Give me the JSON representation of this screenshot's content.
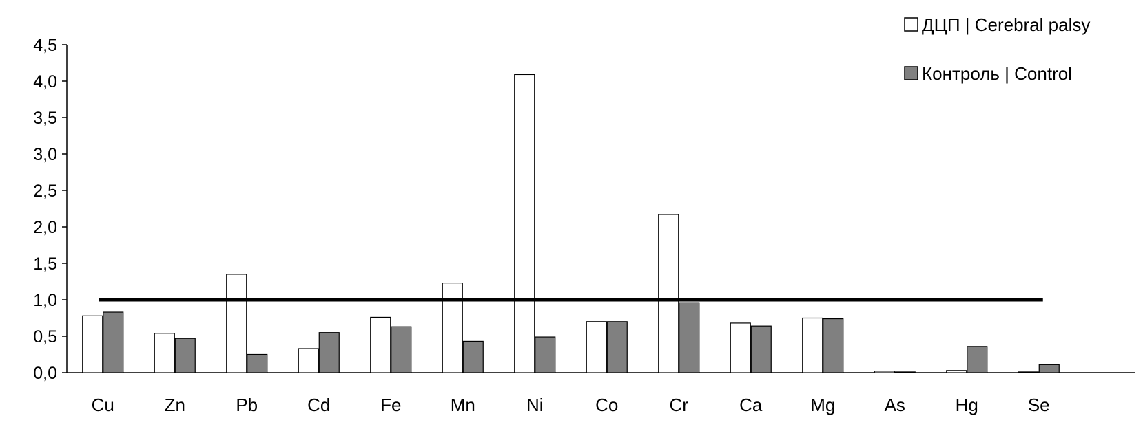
{
  "chart_data": {
    "type": "bar",
    "title": "",
    "xlabel": "",
    "ylabel": "",
    "categories": [
      "Cu",
      "Zn",
      "Pb",
      "Cd",
      "Fe",
      "Mn",
      "Ni",
      "Co",
      "Cr",
      "Ca",
      "Mg",
      "As",
      "Hg",
      "Se"
    ],
    "series": [
      {
        "name": "ДЦП | Cerebral palsy",
        "color": "#ffffff",
        "values": [
          0.78,
          0.54,
          1.35,
          0.33,
          0.76,
          1.23,
          4.09,
          0.7,
          2.17,
          0.68,
          0.75,
          0.02,
          0.03,
          0.01
        ]
      },
      {
        "name": "Контроль | Control",
        "color": "#808080",
        "values": [
          0.83,
          0.47,
          0.25,
          0.55,
          0.63,
          0.43,
          0.49,
          0.7,
          0.96,
          0.64,
          0.74,
          0.01,
          0.36,
          0.11
        ]
      }
    ],
    "ylim": [
      0,
      4.5
    ],
    "yticks": [
      "0,0",
      "0,5",
      "1,0",
      "1,5",
      "2,0",
      "2,5",
      "3,0",
      "3,5",
      "4,0",
      "4,5"
    ],
    "reference_line": 1.0,
    "grid": false,
    "legend_position": "top-right"
  }
}
